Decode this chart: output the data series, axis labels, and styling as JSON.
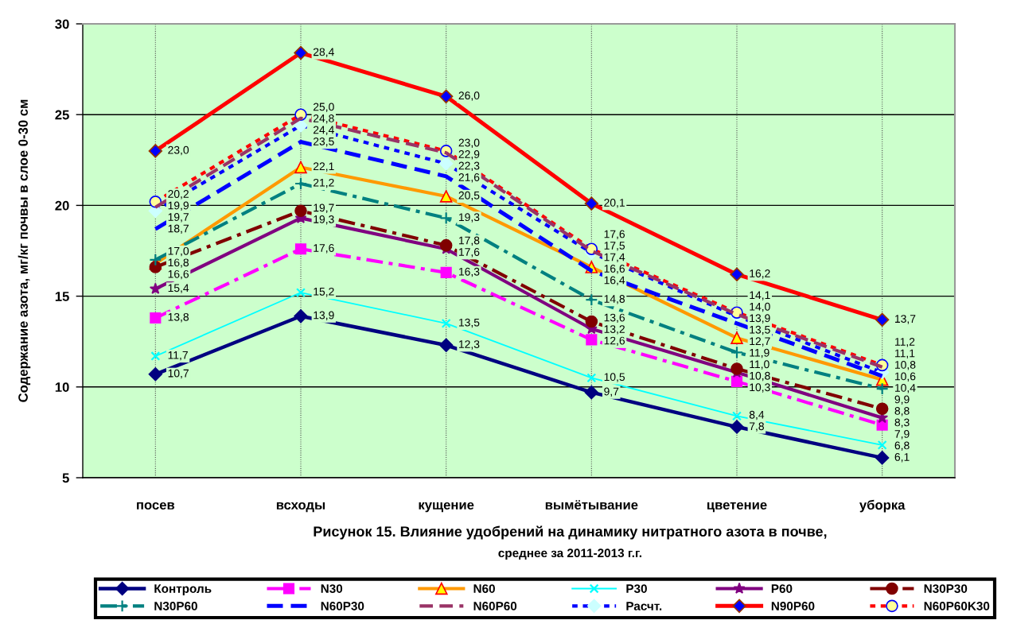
{
  "chart_data": {
    "type": "line",
    "title": "Рисунок 15. Влияние удобрений на динамику нитратного азота в почве,",
    "subtitle": "среднее за 2011-2013 г.г.",
    "ylabel": "Содержание азота, мг/кг почвы в слое 0-30 см",
    "categories": [
      "посев",
      "всходы",
      "кущение",
      "вымётывание",
      "цветение",
      "уборка"
    ],
    "ylim": [
      5,
      30
    ],
    "yticks": [
      5,
      10,
      15,
      20,
      25,
      30
    ],
    "grid": true,
    "legend": "bottom",
    "series": [
      {
        "name": "Контроль",
        "color": "#000080",
        "marker": "diamond",
        "line_style": "solid",
        "values": [
          10.7,
          13.9,
          12.3,
          9.7,
          7.8,
          6.1
        ],
        "value_labels": [
          "10,7",
          "13,9",
          "12,3",
          "9,7",
          "7,8",
          "6,1"
        ]
      },
      {
        "name": "N30",
        "color": "#ff00ff",
        "marker": "square",
        "line_style": "dashdot",
        "values": [
          13.8,
          17.6,
          16.3,
          12.6,
          10.3,
          7.9
        ],
        "value_labels": [
          "13,8",
          "17,6",
          "16,3",
          "12,6",
          "10,3",
          "7,9"
        ]
      },
      {
        "name": "N60",
        "color": "#ff9900",
        "marker": "triangle",
        "line_style": "solid",
        "values": [
          16.8,
          22.1,
          20.5,
          16.6,
          12.7,
          10.4
        ],
        "value_labels": [
          "16,8",
          "22,1",
          "20,5",
          "16,6",
          "12,7",
          "10,4"
        ]
      },
      {
        "name": "P30",
        "color": "#00ffff",
        "marker": "cross",
        "line_style": "solid",
        "values": [
          11.7,
          15.2,
          13.5,
          10.5,
          8.4,
          6.8
        ],
        "value_labels": [
          "11,7",
          "15,2",
          "13,5",
          "10,5",
          "8,4",
          "6,8"
        ]
      },
      {
        "name": "P60",
        "color": "#800080",
        "marker": "star",
        "line_style": "solid",
        "values": [
          15.4,
          19.3,
          17.6,
          13.2,
          10.8,
          8.3
        ],
        "value_labels": [
          "15,4",
          "19,3",
          "17,6",
          "13,2",
          "10,8",
          "8,3"
        ]
      },
      {
        "name": "N30P30",
        "color": "#800000",
        "marker": "circle",
        "line_style": "dashdot",
        "values": [
          16.6,
          19.7,
          17.8,
          13.6,
          11.0,
          8.8
        ],
        "value_labels": [
          "16,6",
          "19,7",
          "17,8",
          "13,6",
          "11,0",
          "8,8"
        ]
      },
      {
        "name": "N30P60",
        "color": "#008080",
        "marker": "plus",
        "line_style": "dashdot",
        "values": [
          17.0,
          21.2,
          19.3,
          14.8,
          11.9,
          9.9
        ],
        "value_labels": [
          "17,0",
          "21,2",
          "19,3",
          "14,8",
          "11,9",
          "9,9"
        ]
      },
      {
        "name": "N60P30",
        "color": "#0000ff",
        "marker": "none",
        "line_style": "dashed",
        "values": [
          18.7,
          23.5,
          21.6,
          16.4,
          13.5,
          10.6
        ],
        "value_labels": [
          "18,7",
          "23,5",
          "21,6",
          "16,4",
          "13,5",
          "10,6"
        ]
      },
      {
        "name": "N60P60",
        "color": "#993366",
        "marker": "none",
        "line_style": "dashed",
        "values": [
          19.9,
          24.8,
          22.9,
          17.5,
          14.0,
          11.1
        ],
        "value_labels": [
          "19,9",
          "24,8",
          "22,9",
          "17,5",
          "14,0",
          "11,1"
        ]
      },
      {
        "name": "Расчт.",
        "color": "#0000ff",
        "marker": "diamond",
        "line_style": "dotted",
        "values": [
          19.7,
          24.4,
          22.3,
          17.4,
          13.9,
          10.8
        ],
        "value_labels": [
          "19,7",
          "24,4",
          "22,3",
          "17,4",
          "13,9",
          "10,8"
        ]
      },
      {
        "name": "N90P60",
        "color": "#ff0000",
        "marker": "diamond",
        "line_style": "solid",
        "values": [
          23.0,
          28.4,
          26.0,
          20.1,
          16.2,
          13.7
        ],
        "value_labels": [
          "23,0",
          "28,4",
          "26,0",
          "20,1",
          "16,2",
          "13,7"
        ]
      },
      {
        "name": "N60P60K30",
        "color": "#ff0000",
        "marker": "circle",
        "line_style": "dotted",
        "values": [
          20.2,
          25.0,
          23.0,
          17.6,
          14.1,
          11.2
        ],
        "value_labels": [
          "20,2",
          "25,0",
          "23,0",
          "17,6",
          "14,1",
          "11,2"
        ]
      }
    ]
  }
}
